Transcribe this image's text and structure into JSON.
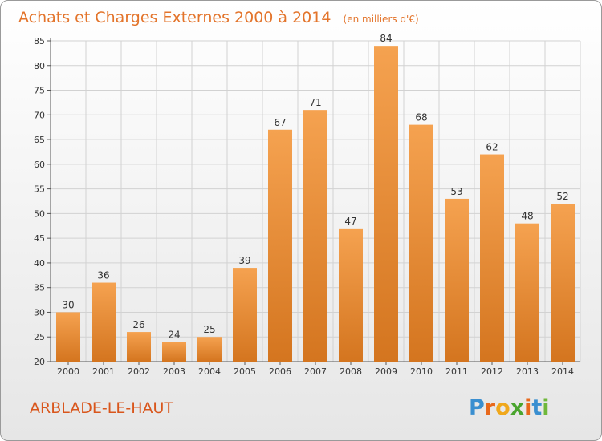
{
  "chart_data": {
    "type": "bar",
    "title": "Achats et Charges Externes 2000 à 2014",
    "subtitle": "(en milliers d'€)",
    "categories": [
      "2000",
      "2001",
      "2002",
      "2003",
      "2004",
      "2005",
      "2006",
      "2007",
      "2008",
      "2009",
      "2010",
      "2011",
      "2012",
      "2013",
      "2014"
    ],
    "values": [
      30,
      36,
      26,
      24,
      25,
      39,
      67,
      71,
      47,
      84,
      68,
      53,
      62,
      48,
      52
    ],
    "ylim": [
      20,
      85
    ],
    "yticks": [
      20,
      25,
      30,
      35,
      40,
      45,
      50,
      55,
      60,
      65,
      70,
      75,
      80,
      85
    ],
    "grid": true,
    "bar_color_top": "#f5a250",
    "bar_color_bottom": "#d4751f"
  },
  "place_name": "ARBLADE-LE-HAUT",
  "logo": {
    "letters": [
      "P",
      "r",
      "o",
      "x",
      "i",
      "t",
      "i"
    ],
    "colors": [
      "#3a8fd0",
      "#e8691c",
      "#f0a81c",
      "#4aa52e",
      "#e8691c",
      "#3a8fd0",
      "#6fb83a"
    ]
  }
}
